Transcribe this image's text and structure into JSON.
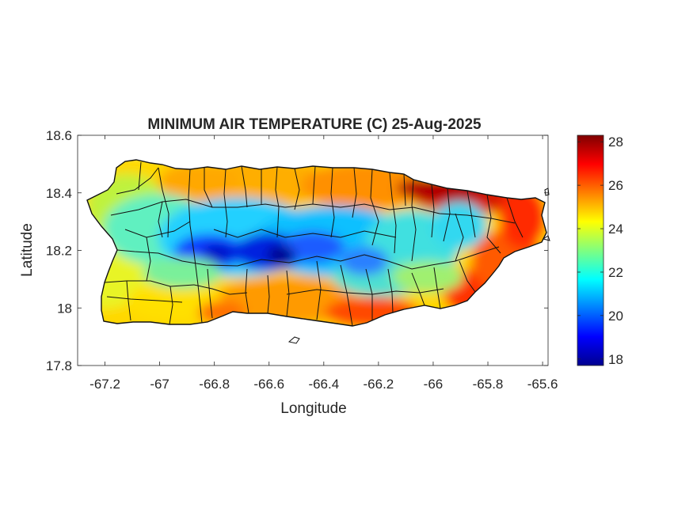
{
  "chart_data": {
    "type": "heatmap",
    "title": "MINIMUM AIR TEMPERATURE (C) 25-Aug-2025",
    "xlabel": "Longitude",
    "ylabel": "Latitude",
    "xlim": [
      -67.3,
      -65.58
    ],
    "ylim": [
      17.8,
      18.6
    ],
    "xticks": [
      -67.2,
      -67,
      -66.8,
      -66.6,
      -66.4,
      -66.2,
      -66,
      -65.8,
      -65.6
    ],
    "xtick_labels": [
      "-67.2",
      "-67",
      "-66.8",
      "-66.6",
      "-66.4",
      "-66.2",
      "-66",
      "-65.8",
      "-65.6"
    ],
    "yticks": [
      17.8,
      18,
      18.2,
      18.4,
      18.6
    ],
    "ytick_labels": [
      "17.8",
      "18",
      "18.2",
      "18.4",
      "18.6"
    ],
    "colormap": "jet",
    "colorbar": {
      "range": [
        17.7,
        28.3
      ],
      "ticks": [
        18,
        20,
        22,
        24,
        26,
        28
      ],
      "tick_labels": [
        "18",
        "20",
        "22",
        "24",
        "26",
        "28"
      ]
    },
    "grid": false,
    "region": "Puerto Rico",
    "field_summary": {
      "coldest_area": "central mountains (approx -66.8 to -66.4, 18.15-18.25), ~18-20",
      "warmest_area": "northeast coast (approx -66.0 to -65.6, 18.3-18.45), ~27-28",
      "south_coast": "~25-27",
      "west_coast": "~23-24"
    }
  }
}
